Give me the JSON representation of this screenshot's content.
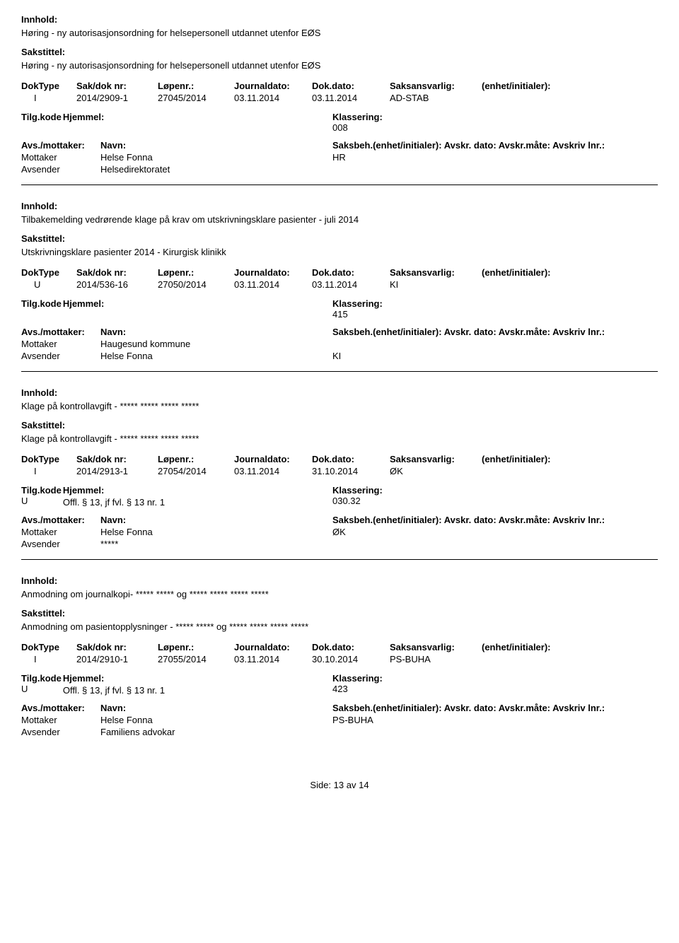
{
  "labels": {
    "innhold": "Innhold:",
    "sakstittel": "Sakstittel:",
    "dokType": "DokType",
    "sakDok": "Sak/dok nr:",
    "lopenr": "Løpenr.:",
    "journaldato": "Journaldato:",
    "dokdato": "Dok.dato:",
    "saksansvarlig": "Saksansvarlig:",
    "enhet": "(enhet/initialer):",
    "tilgkode": "Tilg.kode",
    "hjemmel": "Hjemmel:",
    "klassering": "Klassering:",
    "avsMottaker": "Avs./mottaker:",
    "navn": "Navn:",
    "saksbeh": "Saksbeh.(enhet/initialer): Avskr. dato:  Avskr.måte:  Avskriv lnr.:",
    "mottaker": "Mottaker",
    "avsender": "Avsender"
  },
  "records": [
    {
      "innhold": "Høring - ny autorisasjonsordning for helsepersonell utdannet utenfor EØS",
      "sakstittel": "Høring - ny autorisasjonsordning for helsepersonell utdannet utenfor EØS",
      "dokType": "I",
      "sakDok": "2014/2909-1",
      "lopenr": "27045/2014",
      "journaldato": "03.11.2014",
      "dokdato": "03.11.2014",
      "saksansvarlig": "AD-STAB",
      "tilgkode": "",
      "hjemmel": "",
      "klassering": "008",
      "mottakerNavn": "Helse Fonna",
      "saksbehUnit": "HR",
      "avsenderNavn": "Helsedirektoratet"
    },
    {
      "innhold": "Tilbakemelding vedrørende klage på krav om utskrivningsklare pasienter - juli 2014",
      "sakstittel": "Utskrivningsklare pasienter 2014 - Kirurgisk klinikk",
      "dokType": "U",
      "sakDok": "2014/536-16",
      "lopenr": "27050/2014",
      "journaldato": "03.11.2014",
      "dokdato": "03.11.2014",
      "saksansvarlig": "KI",
      "tilgkode": "",
      "hjemmel": "",
      "klassering": "415",
      "mottakerNavn": "Haugesund kommune",
      "saksbehUnit": "",
      "avsenderNavn": "Helse Fonna",
      "avsenderUnit": "KI"
    },
    {
      "innhold": "Klage på kontrollavgift - ***** ***** ***** *****",
      "sakstittel": "Klage på kontrollavgift - ***** ***** ***** *****",
      "dokType": "I",
      "sakDok": "2014/2913-1",
      "lopenr": "27054/2014",
      "journaldato": "03.11.2014",
      "dokdato": "31.10.2014",
      "saksansvarlig": "ØK",
      "tilgkode": "U",
      "hjemmel": "Offl. § 13, jf fvl. § 13 nr. 1",
      "klassering": "030.32",
      "mottakerNavn": "Helse Fonna",
      "saksbehUnit": "ØK",
      "avsenderNavn": "*****"
    },
    {
      "innhold": "Anmodning om journalkopi- ***** ***** og ***** ***** ***** *****",
      "sakstittel": "Anmodning om pasientopplysninger - ***** ***** og ***** ***** ***** *****",
      "dokType": "I",
      "sakDok": "2014/2910-1",
      "lopenr": "27055/2014",
      "journaldato": "03.11.2014",
      "dokdato": "30.10.2014",
      "saksansvarlig": "PS-BUHA",
      "tilgkode": "U",
      "hjemmel": "Offl. § 13, jf fvl. § 13 nr. 1",
      "klassering": "423",
      "mottakerNavn": "Helse Fonna",
      "saksbehUnit": "PS-BUHA",
      "avsenderNavn": "Familiens advokar"
    }
  ],
  "footer": {
    "prefix": "Side:",
    "current": "13",
    "sep": "av",
    "total": "14"
  }
}
